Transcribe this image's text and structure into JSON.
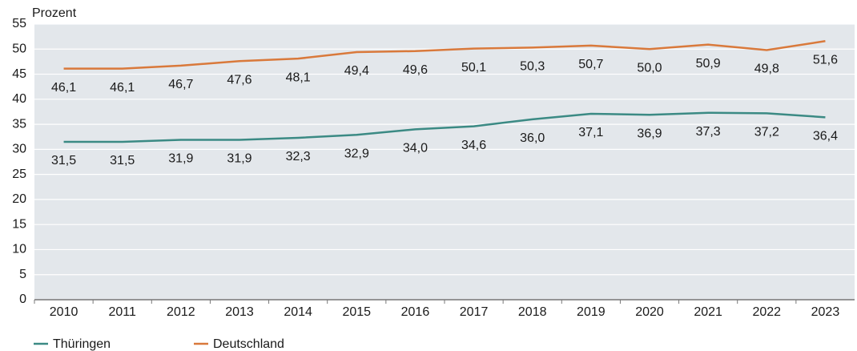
{
  "chart_data": {
    "type": "line",
    "y_label": "Prozent",
    "categories": [
      "2010",
      "2011",
      "2012",
      "2013",
      "2014",
      "2015",
      "2016",
      "2017",
      "2018",
      "2019",
      "2020",
      "2021",
      "2022",
      "2023"
    ],
    "series": [
      {
        "name": "Thüringen",
        "color": "#3b8a84",
        "values": [
          31.5,
          31.5,
          31.9,
          31.9,
          32.3,
          32.9,
          34.0,
          34.6,
          36.0,
          37.1,
          36.9,
          37.3,
          37.2,
          36.4
        ],
        "value_labels": [
          "31,5",
          "31,5",
          "31,9",
          "31,9",
          "32,3",
          "32,9",
          "34,0",
          "34,6",
          "36,0",
          "37,1",
          "36,9",
          "37,3",
          "37,2",
          "36,4"
        ]
      },
      {
        "name": "Deutschland",
        "color": "#d9793b",
        "values": [
          46.1,
          46.1,
          46.7,
          47.6,
          48.1,
          49.4,
          49.6,
          50.1,
          50.3,
          50.7,
          50.0,
          50.9,
          49.8,
          51.6
        ],
        "value_labels": [
          "46,1",
          "46,1",
          "46,7",
          "47,6",
          "48,1",
          "49,4",
          "49,6",
          "50,1",
          "50,3",
          "50,7",
          "50,0",
          "50,9",
          "49,8",
          "51,6"
        ]
      }
    ],
    "ylim": [
      0,
      55
    ],
    "yticks": [
      0,
      5,
      10,
      15,
      20,
      25,
      30,
      35,
      40,
      45,
      50,
      55
    ],
    "grid": true
  }
}
